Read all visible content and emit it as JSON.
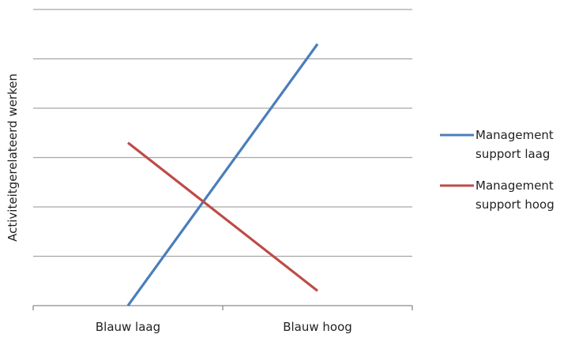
{
  "chart_data": {
    "type": "line",
    "title": "",
    "xlabel": "",
    "ylabel": "Activiteitgerelateerd werken",
    "categories": [
      "Blauw laag",
      "Blauw hoog"
    ],
    "ylim": [
      0,
      6
    ],
    "grid": true,
    "legend_position": "right",
    "series": [
      {
        "name": "Management support laag",
        "name_lines": [
          "Management",
          "support laag"
        ],
        "color": "#4a7ebb",
        "values": [
          0.0,
          5.3
        ]
      },
      {
        "name": "Management support hoog",
        "name_lines": [
          "Management",
          "support hoog"
        ],
        "color": "#be4b48",
        "values": [
          3.3,
          0.3
        ]
      }
    ]
  }
}
